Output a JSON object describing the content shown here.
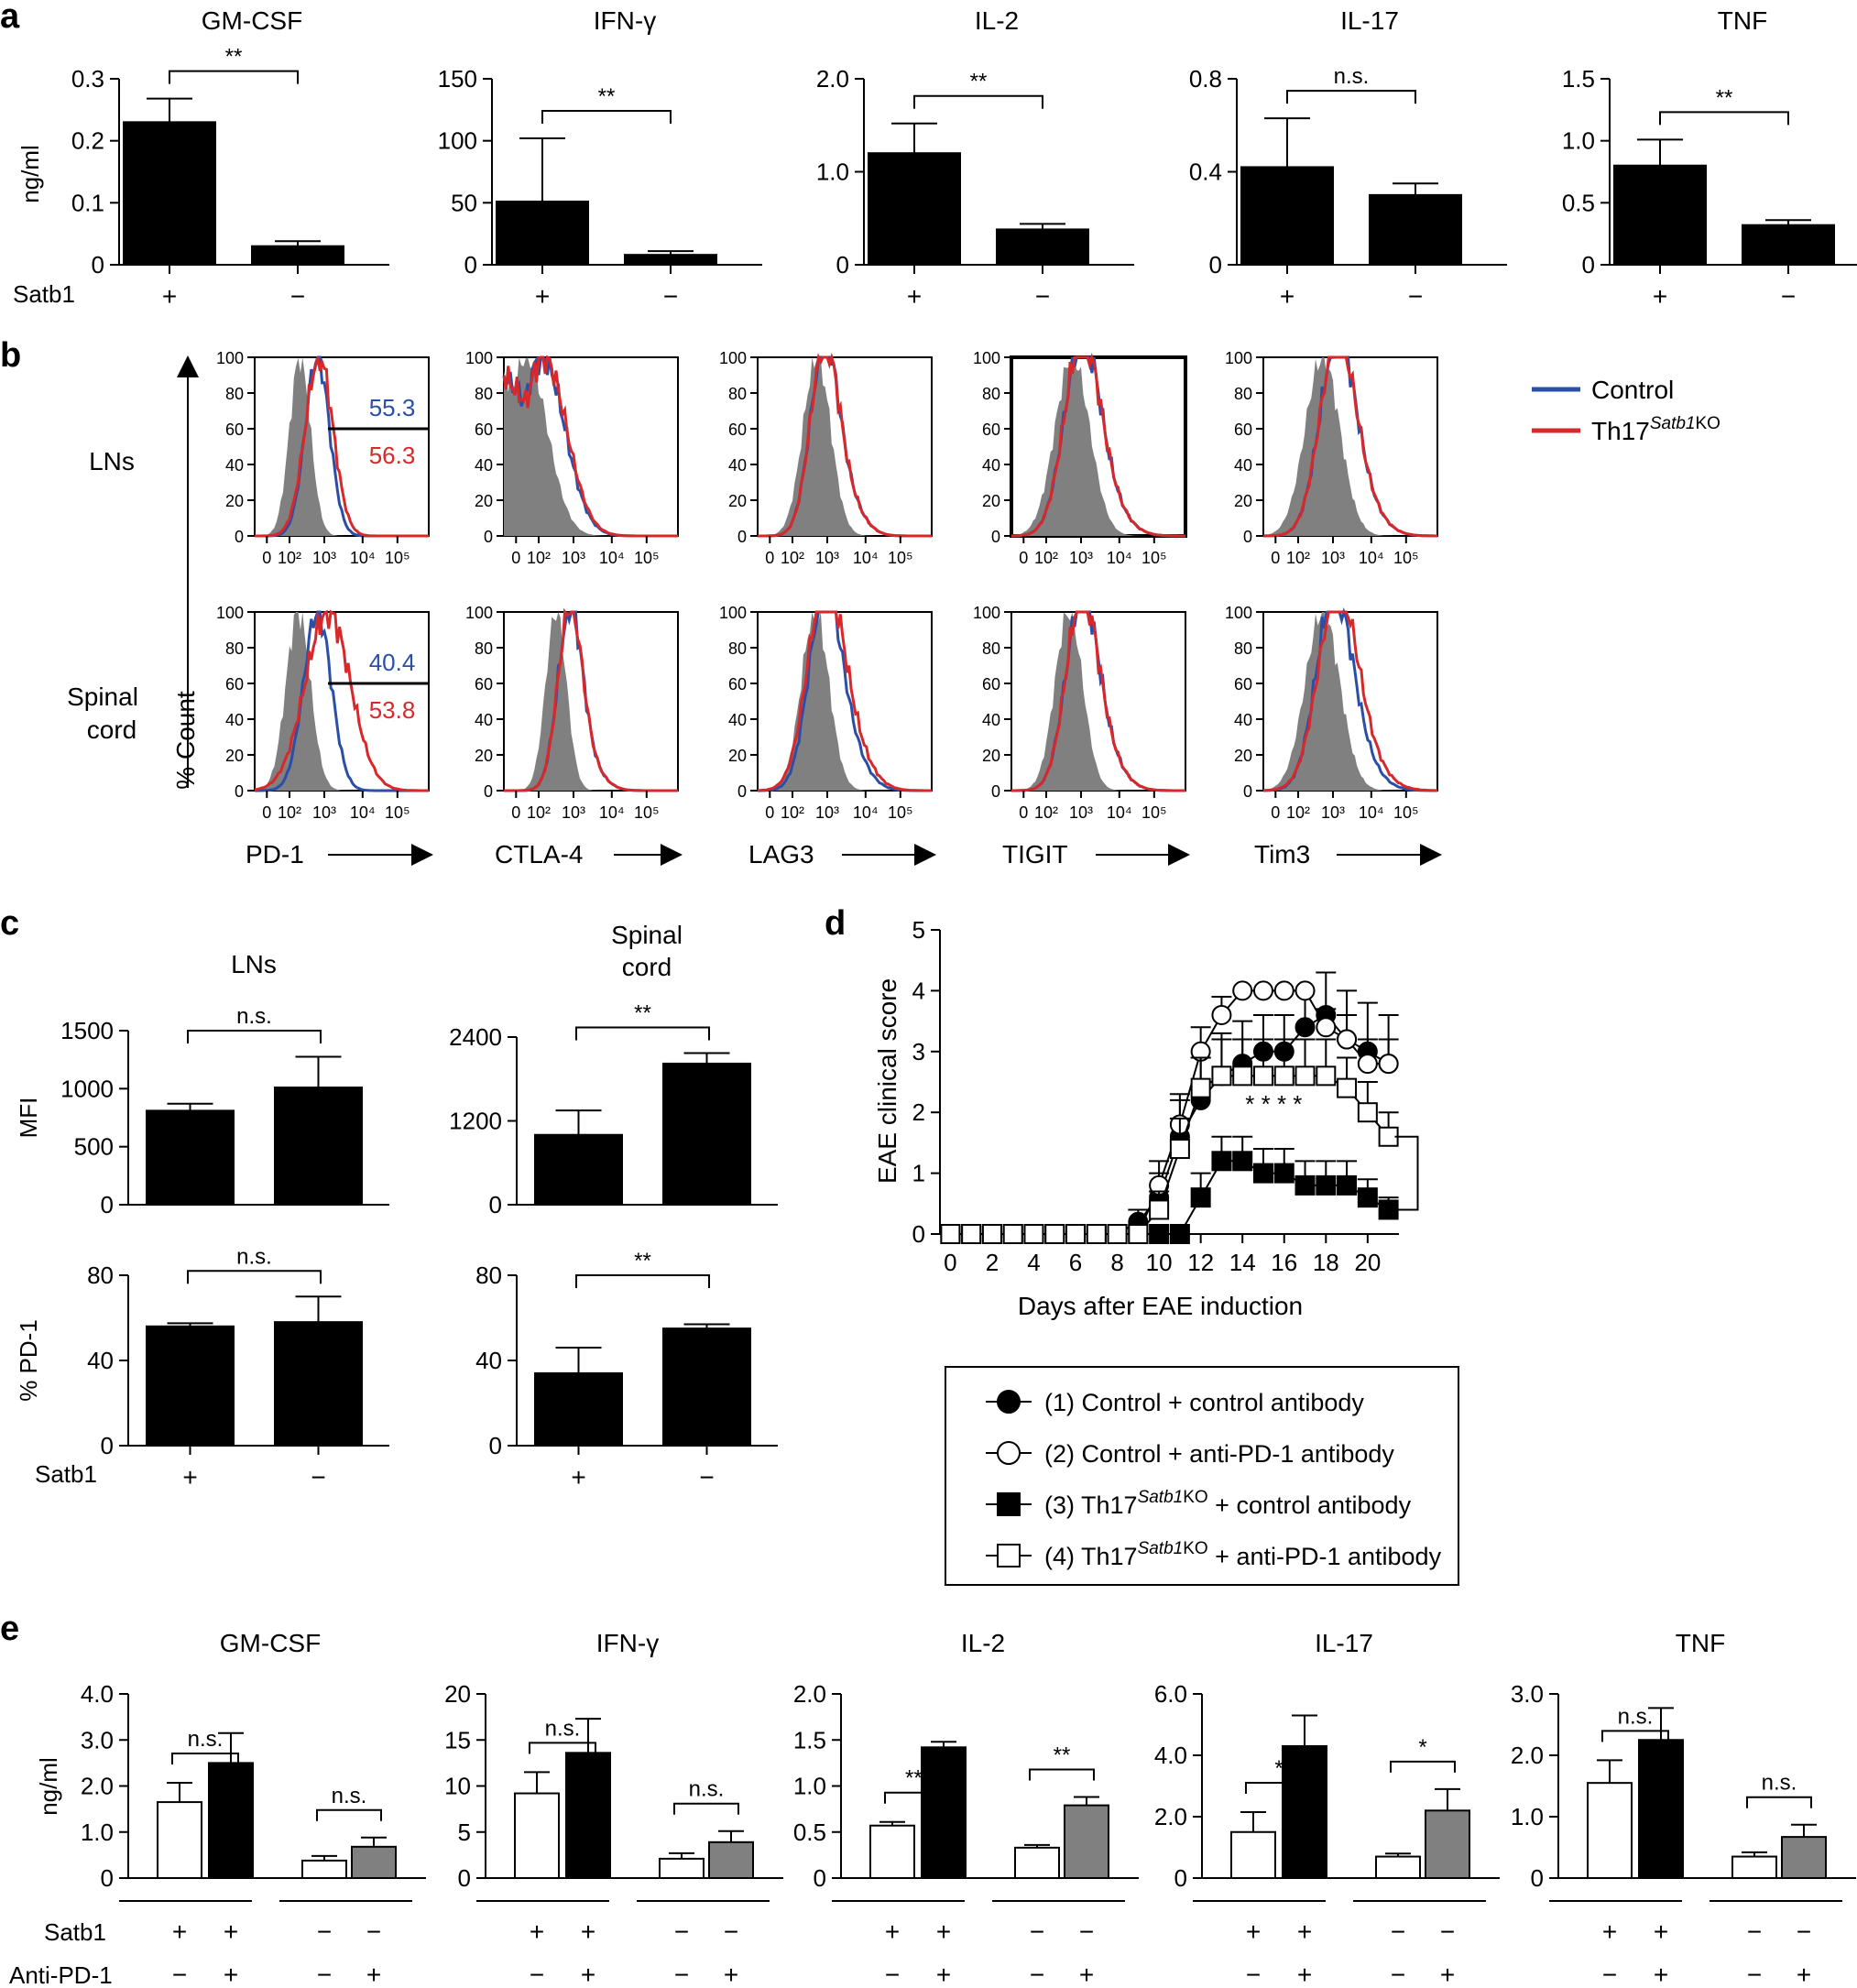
{
  "figure": {
    "panel_letters": [
      "a",
      "b",
      "c",
      "d",
      "e"
    ]
  },
  "chart_data": [
    {
      "panel": "a",
      "type": "bar",
      "ylabel": "ng/ml",
      "group_row_label": "Satb1",
      "categories": [
        "+",
        "−"
      ],
      "bar_colors": [
        "#000000",
        "#000000"
      ],
      "charts": [
        {
          "title": "GM-CSF",
          "ylim": [
            0,
            0.3
          ],
          "ticks": [
            "0",
            "0.1",
            "0.2",
            "0.3"
          ],
          "tick_values": [
            0,
            0.1,
            0.2,
            0.3
          ],
          "values": [
            0.23,
            0.03
          ],
          "errors": [
            0.038,
            0.008
          ],
          "sig": "**"
        },
        {
          "title": "IFN-γ",
          "ylim": [
            0,
            150
          ],
          "ticks": [
            "0",
            "50",
            "100",
            "150"
          ],
          "tick_values": [
            0,
            50,
            100,
            150
          ],
          "values": [
            51,
            8
          ],
          "errors": [
            51,
            3
          ],
          "sig": "**"
        },
        {
          "title": "IL-2",
          "ylim": [
            0,
            2.0
          ],
          "ticks": [
            "0",
            "1.0",
            "2.0"
          ],
          "tick_values": [
            0,
            1.0,
            2.0
          ],
          "values": [
            1.2,
            0.38
          ],
          "errors": [
            0.32,
            0.06
          ],
          "sig": "**"
        },
        {
          "title": "IL-17",
          "ylim": [
            0,
            0.8
          ],
          "ticks": [
            "0",
            "0.4",
            "0.8"
          ],
          "tick_values": [
            0,
            0.4,
            0.8
          ],
          "values": [
            0.42,
            0.3
          ],
          "errors": [
            0.21,
            0.05
          ],
          "sig": "n.s."
        },
        {
          "title": "TNF",
          "ylim": [
            0,
            1.5
          ],
          "ticks": [
            "0",
            "0.5",
            "1.0",
            "1.5"
          ],
          "tick_values": [
            0,
            0.5,
            1.0,
            1.5
          ],
          "values": [
            0.8,
            0.32
          ],
          "errors": [
            0.21,
            0.04
          ],
          "sig": "**"
        }
      ]
    },
    {
      "panel": "b",
      "type": "histogram",
      "ylabel": "% Count",
      "y_ticks": [
        "0",
        "20",
        "40",
        "60",
        "80",
        "100"
      ],
      "x_ticks": [
        "0",
        "10²",
        "10³",
        "10⁴",
        "10⁵"
      ],
      "rows": [
        "LNs",
        "Spinal\ncord"
      ],
      "markers": [
        "PD-1",
        "CTLA-4",
        "LAG3",
        "TIGIT",
        "Tim3"
      ],
      "legend": [
        {
          "name": "Control",
          "color": "#2a4fa8"
        },
        {
          "name": "Th17",
          "sup": "Satb1",
          "suffix": "KO",
          "color": "#d8282a"
        }
      ],
      "gates": [
        {
          "row": 0,
          "col": 0,
          "control": "55.3",
          "ko": "56.3"
        },
        {
          "row": 1,
          "col": 0,
          "control": "40.4",
          "ko": "53.8"
        }
      ]
    },
    {
      "panel": "c",
      "type": "bar",
      "group_row_label": "Satb1",
      "categories": [
        "+",
        "−"
      ],
      "columns": [
        "LNs",
        "Spinal\ncord"
      ],
      "charts": [
        {
          "ylabel": "MFI",
          "ylim": [
            0,
            1500
          ],
          "ticks": [
            "0",
            "500",
            "1000",
            "1500"
          ],
          "tick_values": [
            0,
            500,
            1000,
            1500
          ],
          "values": [
            810,
            1010
          ],
          "errors": [
            60,
            265
          ],
          "sig": "n.s."
        },
        {
          "ylabel": "",
          "ylim": [
            0,
            2400
          ],
          "ticks": [
            "0",
            "1200",
            "2400"
          ],
          "tick_values": [
            0,
            1200,
            2400
          ],
          "values": [
            1000,
            2020
          ],
          "errors": [
            350,
            150
          ],
          "sig": "**"
        },
        {
          "ylabel": "% PD-1",
          "ylim": [
            0,
            80
          ],
          "ticks": [
            "0",
            "40",
            "80"
          ],
          "tick_values": [
            0,
            40,
            80
          ],
          "values": [
            56,
            58
          ],
          "errors": [
            1.5,
            12
          ],
          "sig": "n.s."
        },
        {
          "ylabel": "",
          "ylim": [
            0,
            80
          ],
          "ticks": [
            "0",
            "40",
            "80"
          ],
          "tick_values": [
            0,
            40,
            80
          ],
          "values": [
            34,
            55
          ],
          "errors": [
            12,
            2
          ],
          "sig": "**"
        }
      ]
    },
    {
      "panel": "d",
      "type": "line",
      "xlabel": "Days after EAE induction",
      "ylabel": "EAE clinical score",
      "xlim": [
        -0.5,
        21.5
      ],
      "ylim": [
        0,
        5
      ],
      "x_ticks": [
        "0",
        "2",
        "4",
        "6",
        "8",
        "10",
        "12",
        "14",
        "16",
        "18",
        "20"
      ],
      "y_ticks": [
        "0",
        "1",
        "2",
        "3",
        "4",
        "5"
      ],
      "annotation": "* * * *",
      "x": [
        0,
        1,
        2,
        3,
        4,
        5,
        6,
        7,
        8,
        9,
        10,
        11,
        12,
        13,
        14,
        15,
        16,
        17,
        18,
        19,
        20,
        21
      ],
      "series": [
        {
          "name": "(1) Control + control antibody",
          "marker": "circle",
          "fill": "#000000",
          "values": [
            0,
            0,
            0,
            0,
            0,
            0,
            0,
            0,
            0,
            0.2,
            0.6,
            1.6,
            2.2,
            2.6,
            2.8,
            3.0,
            3.0,
            3.4,
            3.6,
            3.2,
            3.0,
            2.8
          ],
          "errors": [
            0,
            0,
            0,
            0,
            0,
            0,
            0,
            0,
            0,
            0.2,
            0.4,
            0.6,
            0.7,
            0.7,
            0.7,
            0.6,
            0.6,
            0.6,
            0.7,
            0.8,
            0.8,
            0.8
          ]
        },
        {
          "name": "(2) Control + anti-PD-1 antibody",
          "marker": "circle",
          "fill": "#ffffff",
          "values": [
            0,
            0,
            0,
            0,
            0,
            0,
            0,
            0,
            0,
            0,
            0.8,
            1.8,
            3.0,
            3.6,
            4.0,
            4.0,
            4.0,
            4.0,
            3.4,
            3.2,
            2.8,
            2.8
          ],
          "errors": [
            0,
            0,
            0,
            0,
            0,
            0,
            0,
            0,
            0,
            0,
            0.4,
            0.5,
            0.4,
            0.3,
            0,
            0,
            0,
            0,
            0.3,
            0.4,
            0.4,
            0.4
          ]
        },
        {
          "name": "(3) Th17Satb1KO + control antibody",
          "label_parts": [
            "(3) Th17",
            "Satb1",
            "KO + control antibody"
          ],
          "marker": "square",
          "fill": "#000000",
          "values": [
            0,
            0,
            0,
            0,
            0,
            0,
            0,
            0,
            0,
            0,
            0,
            0,
            0.6,
            1.2,
            1.2,
            1.0,
            1.0,
            0.8,
            0.8,
            0.8,
            0.6,
            0.4
          ],
          "errors": [
            0,
            0,
            0,
            0,
            0,
            0,
            0,
            0,
            0,
            0,
            0,
            0,
            0.4,
            0.4,
            0.4,
            0.4,
            0.4,
            0.4,
            0.4,
            0.4,
            0.3,
            0.2
          ]
        },
        {
          "name": "(4) Th17Satb1KO + anti-PD-1 antibody",
          "label_parts": [
            "(4) Th17",
            "Satb1",
            "KO + anti-PD-1 antibody"
          ],
          "marker": "square",
          "fill": "#ffffff",
          "values": [
            0,
            0,
            0,
            0,
            0,
            0,
            0,
            0,
            0,
            0,
            0.4,
            1.4,
            2.4,
            2.6,
            2.6,
            2.6,
            2.6,
            2.6,
            2.6,
            2.4,
            2.0,
            1.6
          ],
          "errors": [
            0,
            0,
            0,
            0,
            0,
            0,
            0,
            0,
            0,
            0,
            0.3,
            0.5,
            0.5,
            0.6,
            0.6,
            0.6,
            0.6,
            0.6,
            0.6,
            0.5,
            0.5,
            0.4
          ]
        }
      ]
    },
    {
      "panel": "e",
      "type": "bar",
      "ylabel": "ng/ml",
      "row_labels": [
        "Satb1",
        "Anti-PD-1"
      ],
      "satb1_signs": [
        "+",
        "+",
        "−",
        "−"
      ],
      "pd1_signs": [
        "−",
        "+",
        "−",
        "+"
      ],
      "bar_colors": [
        "#ffffff",
        "#000000",
        "#ffffff",
        "#808080"
      ],
      "charts": [
        {
          "title": "GM-CSF",
          "ylim": [
            0,
            4.0
          ],
          "ticks": [
            "0",
            "1.0",
            "2.0",
            "3.0",
            "4.0"
          ],
          "tick_values": [
            0,
            1,
            2,
            3,
            4
          ],
          "values": [
            1.65,
            2.5,
            0.38,
            0.68
          ],
          "errors": [
            0.42,
            0.65,
            0.1,
            0.2
          ],
          "sig": [
            "n.s.",
            "n.s."
          ]
        },
        {
          "title": "IFN-γ",
          "ylim": [
            0,
            20
          ],
          "ticks": [
            "0",
            "5",
            "10",
            "15",
            "20"
          ],
          "tick_values": [
            0,
            5,
            10,
            15,
            20
          ],
          "values": [
            9.2,
            13.6,
            2.1,
            3.9
          ],
          "errors": [
            2.3,
            3.7,
            0.6,
            1.2
          ],
          "sig": [
            "n.s.",
            "n.s."
          ]
        },
        {
          "title": "IL-2",
          "ylim": [
            0,
            2.0
          ],
          "ticks": [
            "0",
            "0.5",
            "1.0",
            "1.5",
            "2.0"
          ],
          "tick_values": [
            0,
            0.5,
            1,
            1.5,
            2
          ],
          "values": [
            0.57,
            1.42,
            0.33,
            0.79
          ],
          "errors": [
            0.04,
            0.06,
            0.03,
            0.09
          ],
          "sig": [
            "***",
            "**"
          ]
        },
        {
          "title": "IL-17",
          "ylim": [
            0,
            6.0
          ],
          "ticks": [
            "0",
            "2.0",
            "4.0",
            "6.0"
          ],
          "tick_values": [
            0,
            2,
            4,
            6
          ],
          "values": [
            1.5,
            4.3,
            0.7,
            2.2
          ],
          "errors": [
            0.65,
            1.0,
            0.1,
            0.7
          ],
          "sig": [
            "*",
            "*"
          ]
        },
        {
          "title": "TNF",
          "ylim": [
            0,
            3.0
          ],
          "ticks": [
            "0",
            "1.0",
            "2.0",
            "3.0"
          ],
          "tick_values": [
            0,
            1,
            2,
            3
          ],
          "values": [
            1.55,
            2.25,
            0.35,
            0.67
          ],
          "errors": [
            0.37,
            0.52,
            0.07,
            0.2
          ],
          "sig": [
            "n.s.",
            "n.s."
          ]
        }
      ]
    }
  ]
}
